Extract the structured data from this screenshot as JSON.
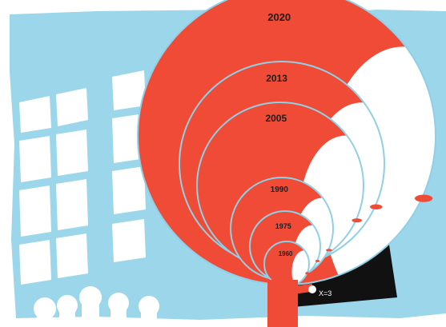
{
  "illustration": {
    "years": [
      "2020",
      "2013",
      "2005",
      "1990",
      "1975",
      "1960"
    ],
    "blackboard_text": "X=3",
    "colors": {
      "sky": "#9bd6ea",
      "head_fill": "#f04b36",
      "face": "#ffffff",
      "outline": "#8fd0e6",
      "board": "#111111",
      "window": "#ffffff"
    }
  }
}
